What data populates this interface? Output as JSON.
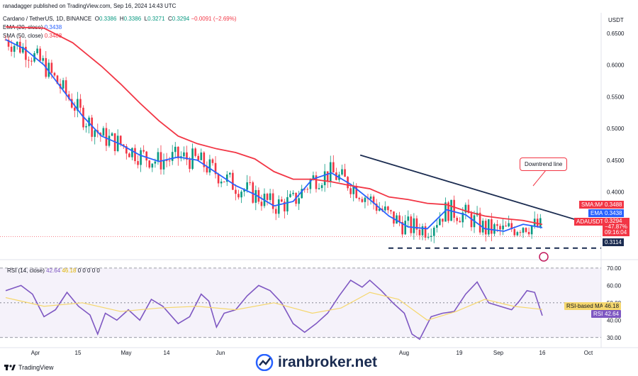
{
  "header": {
    "published": "ranadagger published on TradingView.com, Sep 16, 2024 14:43 UTC",
    "symbol": "Cardano / TetherUS, 1D, BINANCE",
    "o_label": "O",
    "o": "0.3386",
    "h_label": "H",
    "h": "0.3386",
    "l_label": "L",
    "l": "0.3271",
    "c_label": "C",
    "c": "0.3294",
    "change": "−0.0091 (−2.69%)",
    "ema_label": "EMA (20, close)",
    "ema_value": "0.3438",
    "sma_label": "SMA (50, close)",
    "sma_value": "0.3488"
  },
  "currency": "USDT",
  "price_tags": {
    "sma_name": "SMA:MA",
    "sma_value": "0.3488",
    "ema_name": "EMA",
    "ema_value": "0.3438",
    "pair_name": "ADAUSDT",
    "pair_value": "0.3294",
    "pair_change": "−47.87%",
    "countdown": "09:16:04",
    "support": "0.3114"
  },
  "annotation": "Downtrend line",
  "rsi": {
    "label": "RSI (14, close)",
    "value": "42.64",
    "ma_value": "46.18",
    "extra": "0 0 0 0 0",
    "ma_tag_name": "RSI-based MA",
    "ma_tag_value": "46.18",
    "tag_name": "RSI",
    "tag_value": "42.64"
  },
  "x_ticks": [
    "Apr",
    "15",
    "May",
    "14",
    "Jun",
    "Aug",
    "19",
    "Sep",
    "16",
    "Oct"
  ],
  "price_ticks": [
    "0.6500",
    "0.6000",
    "0.5500",
    "0.5000",
    "0.4500",
    "0.4000"
  ],
  "rsi_ticks": [
    "70.00",
    "60.00",
    "50.00",
    "40.00",
    "30.00"
  ],
  "footer": {
    "brand": "TradingView"
  },
  "watermark": "iranbroker.net",
  "colors": {
    "up": "#089981",
    "down": "#f23645",
    "ema": "#2962ff",
    "sma": "#f23645",
    "rsi": "#7e57c2",
    "rsi_ma": "#f5d76e",
    "trend": "#1a2b50"
  },
  "chart_data": [
    {
      "type": "candlestick",
      "title": "Cardano / TetherUS, 1D, BINANCE",
      "x_range": [
        "Mar 2024",
        "Oct 2024"
      ],
      "ylim": [
        0.3,
        0.68
      ],
      "support_level": 0.3114,
      "last_close": 0.3294,
      "series": [
        {
          "name": "EMA (20, close)",
          "points": [
            [
              0,
              0.64
            ],
            [
              10,
              0.625
            ],
            [
              20,
              0.6
            ],
            [
              30,
              0.56
            ],
            [
              40,
              0.52
            ],
            [
              50,
              0.488
            ],
            [
              60,
              0.475
            ],
            [
              70,
              0.458
            ],
            [
              80,
              0.448
            ],
            [
              90,
              0.455
            ],
            [
              100,
              0.45
            ],
            [
              110,
              0.43
            ],
            [
              120,
              0.41
            ],
            [
              130,
              0.396
            ],
            [
              140,
              0.378
            ],
            [
              150,
              0.385
            ],
            [
              160,
              0.42
            ],
            [
              170,
              0.43
            ],
            [
              180,
              0.412
            ],
            [
              190,
              0.388
            ],
            [
              200,
              0.362
            ],
            [
              210,
              0.345
            ],
            [
              220,
              0.342
            ],
            [
              230,
              0.372
            ],
            [
              240,
              0.364
            ],
            [
              250,
              0.342
            ],
            [
              260,
              0.338
            ],
            [
              270,
              0.349
            ],
            [
              280,
              0.3438
            ]
          ]
        },
        {
          "name": "SMA (50, close)",
          "points": [
            [
              0,
              0.66
            ],
            [
              20,
              0.658
            ],
            [
              35,
              0.635
            ],
            [
              50,
              0.598
            ],
            [
              60,
              0.57
            ],
            [
              70,
              0.54
            ],
            [
              80,
              0.512
            ],
            [
              90,
              0.488
            ],
            [
              100,
              0.476
            ],
            [
              110,
              0.468
            ],
            [
              120,
              0.462
            ],
            [
              130,
              0.452
            ],
            [
              140,
              0.432
            ],
            [
              150,
              0.42
            ],
            [
              160,
              0.42
            ],
            [
              170,
              0.416
            ],
            [
              180,
              0.41
            ],
            [
              190,
              0.405
            ],
            [
              200,
              0.392
            ],
            [
              210,
              0.388
            ],
            [
              220,
              0.382
            ],
            [
              230,
              0.38
            ],
            [
              240,
              0.37
            ],
            [
              250,
              0.362
            ],
            [
              260,
              0.358
            ],
            [
              270,
              0.355
            ],
            [
              280,
              0.3488
            ]
          ]
        },
        {
          "name": "Downtrend line",
          "points": [
            [
              185,
              0.458
            ],
            [
              300,
              0.354
            ]
          ]
        }
      ]
    },
    {
      "type": "line",
      "title": "RSI (14, close)",
      "ylim": [
        25,
        72
      ],
      "levels": [
        70,
        30
      ],
      "series": [
        {
          "name": "RSI (14, close)",
          "points": [
            [
              0,
              57
            ],
            [
              8,
              60
            ],
            [
              14,
              55
            ],
            [
              20,
              42
            ],
            [
              26,
              46
            ],
            [
              32,
              56
            ],
            [
              38,
              48
            ],
            [
              44,
              43
            ],
            [
              48,
              32
            ],
            [
              52,
              44
            ],
            [
              58,
              40
            ],
            [
              64,
              46
            ],
            [
              70,
              40
            ],
            [
              76,
              52
            ],
            [
              82,
              48
            ],
            [
              90,
              38
            ],
            [
              96,
              42
            ],
            [
              102,
              55
            ],
            [
              106,
              51
            ],
            [
              110,
              36
            ],
            [
              114,
              44
            ],
            [
              120,
              46
            ],
            [
              126,
              54
            ],
            [
              132,
              60
            ],
            [
              138,
              57
            ],
            [
              144,
              50
            ],
            [
              150,
              38
            ],
            [
              156,
              33
            ],
            [
              162,
              38
            ],
            [
              168,
              44
            ],
            [
              174,
              54
            ],
            [
              180,
              63
            ],
            [
              186,
              59
            ],
            [
              190,
              63
            ],
            [
              196,
              57
            ],
            [
              202,
              50
            ],
            [
              208,
              44
            ],
            [
              212,
              32
            ],
            [
              216,
              29
            ],
            [
              222,
              42
            ],
            [
              228,
              44
            ],
            [
              234,
              45
            ],
            [
              240,
              55
            ],
            [
              246,
              62
            ],
            [
              252,
              50
            ],
            [
              258,
              48
            ],
            [
              264,
              46
            ],
            [
              268,
              51
            ],
            [
              272,
              57
            ],
            [
              276,
              56
            ],
            [
              280,
              42.64
            ]
          ]
        },
        {
          "name": "RSI-based MA",
          "points": [
            [
              0,
              53
            ],
            [
              20,
              48
            ],
            [
              40,
              50
            ],
            [
              60,
              45
            ],
            [
              80,
              47
            ],
            [
              100,
              48
            ],
            [
              120,
              46
            ],
            [
              140,
              50
            ],
            [
              160,
              44
            ],
            [
              175,
              47
            ],
            [
              190,
              56
            ],
            [
              205,
              52
            ],
            [
              220,
              40
            ],
            [
              235,
              45
            ],
            [
              250,
              52
            ],
            [
              265,
              48
            ],
            [
              280,
              46.18
            ]
          ]
        }
      ]
    }
  ]
}
